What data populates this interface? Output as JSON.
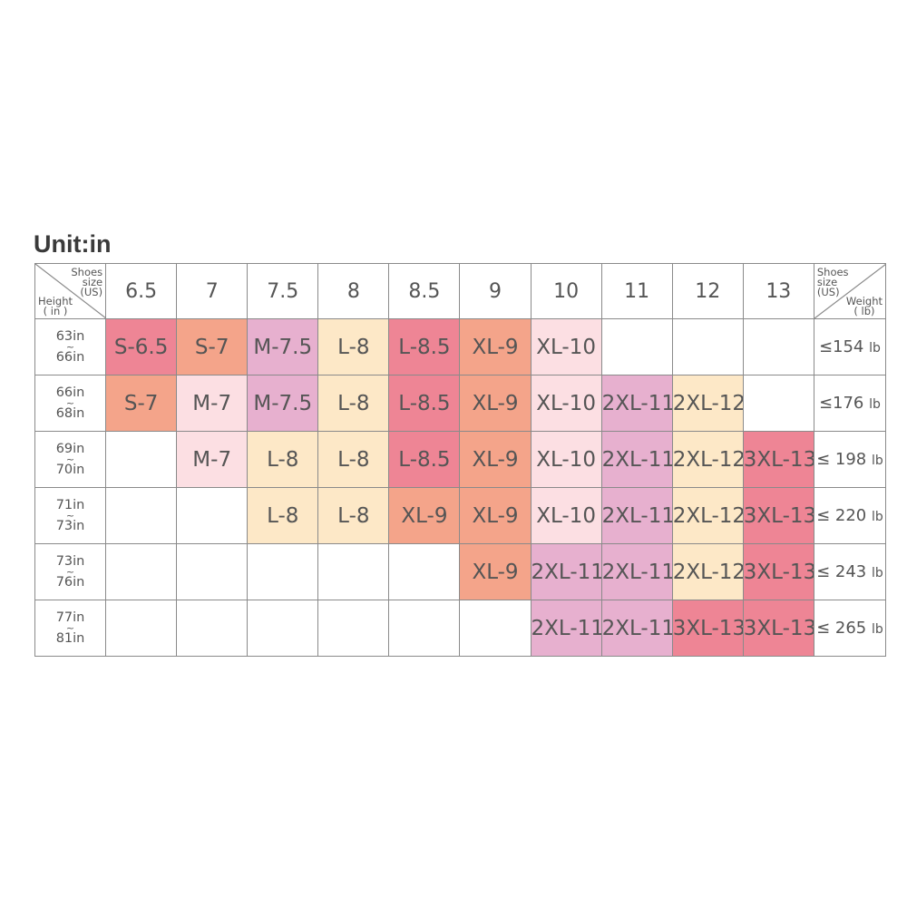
{
  "unit_label": "Unit:in",
  "corner_left": {
    "shoes_line1": "Shoes",
    "shoes_line2": "size",
    "shoes_line3": "(US)",
    "height_line1": "Height",
    "height_line2": "( in )"
  },
  "corner_right": {
    "shoes_line1": "Shoes",
    "shoes_line2": "size",
    "shoes_line3": "(US)",
    "weight_line1": "Weight",
    "weight_line2": "( lb)"
  },
  "shoe_sizes": [
    "6.5",
    "7",
    "7.5",
    "8",
    "8.5",
    "9",
    "10",
    "11",
    "12",
    "13"
  ],
  "rows": [
    {
      "height_from": "63in",
      "tilde": "~",
      "height_to": "66in",
      "weight": "≤154",
      "weight_unit": "lb",
      "cells": [
        {
          "text": "S-6.5",
          "color": "#ee8595"
        },
        {
          "text": "S-7",
          "color": "#f4a48a"
        },
        {
          "text": "M-7.5",
          "color": "#e7b0cf"
        },
        {
          "text": "L-8",
          "color": "#fde8c7"
        },
        {
          "text": "L-8.5",
          "color": "#ee8595"
        },
        {
          "text": "XL-9",
          "color": "#f4a48a"
        },
        {
          "text": "XL-10",
          "color": "#fcdfe3"
        },
        {
          "text": "",
          "color": ""
        },
        {
          "text": "",
          "color": ""
        },
        {
          "text": "",
          "color": ""
        }
      ]
    },
    {
      "height_from": "66in",
      "tilde": "~",
      "height_to": "68in",
      "weight": "≤176",
      "weight_unit": "lb",
      "cells": [
        {
          "text": "S-7",
          "color": "#f4a48a"
        },
        {
          "text": "M-7",
          "color": "#fcdfe3"
        },
        {
          "text": "M-7.5",
          "color": "#e7b0cf"
        },
        {
          "text": "L-8",
          "color": "#fde8c7"
        },
        {
          "text": "L-8.5",
          "color": "#ee8595"
        },
        {
          "text": "XL-9",
          "color": "#f4a48a"
        },
        {
          "text": "XL-10",
          "color": "#fcdfe3"
        },
        {
          "text": "2XL-11",
          "color": "#e7b0cf"
        },
        {
          "text": "2XL-12",
          "color": "#fde8c7"
        },
        {
          "text": "",
          "color": ""
        }
      ]
    },
    {
      "height_from": "69in",
      "tilde": "~",
      "height_to": "70in",
      "weight": "≤ 198",
      "weight_unit": "lb",
      "cells": [
        {
          "text": "",
          "color": ""
        },
        {
          "text": "M-7",
          "color": "#fcdfe3"
        },
        {
          "text": "L-8",
          "color": "#fde8c7"
        },
        {
          "text": "L-8",
          "color": "#fde8c7"
        },
        {
          "text": "L-8.5",
          "color": "#ee8595"
        },
        {
          "text": "XL-9",
          "color": "#f4a48a"
        },
        {
          "text": "XL-10",
          "color": "#fcdfe3"
        },
        {
          "text": "2XL-11",
          "color": "#e7b0cf"
        },
        {
          "text": "2XL-12",
          "color": "#fde8c7"
        },
        {
          "text": "3XL-13",
          "color": "#ee8595"
        }
      ]
    },
    {
      "height_from": "71in",
      "tilde": "~",
      "height_to": "73in",
      "weight": "≤ 220",
      "weight_unit": "lb",
      "cells": [
        {
          "text": "",
          "color": ""
        },
        {
          "text": "",
          "color": ""
        },
        {
          "text": "L-8",
          "color": "#fde8c7"
        },
        {
          "text": "L-8",
          "color": "#fde8c7"
        },
        {
          "text": "XL-9",
          "color": "#f4a48a"
        },
        {
          "text": "XL-9",
          "color": "#f4a48a"
        },
        {
          "text": "XL-10",
          "color": "#fcdfe3"
        },
        {
          "text": "2XL-11",
          "color": "#e7b0cf"
        },
        {
          "text": "2XL-12",
          "color": "#fde8c7"
        },
        {
          "text": "3XL-13",
          "color": "#ee8595"
        }
      ]
    },
    {
      "height_from": "73in",
      "tilde": "~",
      "height_to": "76in",
      "weight": "≤ 243",
      "weight_unit": "lb",
      "cells": [
        {
          "text": "",
          "color": ""
        },
        {
          "text": "",
          "color": ""
        },
        {
          "text": "",
          "color": ""
        },
        {
          "text": "",
          "color": ""
        },
        {
          "text": "",
          "color": ""
        },
        {
          "text": "XL-9",
          "color": "#f4a48a"
        },
        {
          "text": "2XL-11",
          "color": "#e7b0cf"
        },
        {
          "text": "2XL-11",
          "color": "#e7b0cf"
        },
        {
          "text": "2XL-12",
          "color": "#fde8c7"
        },
        {
          "text": "3XL-13",
          "color": "#ee8595"
        }
      ]
    },
    {
      "height_from": "77in",
      "tilde": "~",
      "height_to": "81in",
      "weight": "≤ 265",
      "weight_unit": "lb",
      "cells": [
        {
          "text": "",
          "color": ""
        },
        {
          "text": "",
          "color": ""
        },
        {
          "text": "",
          "color": ""
        },
        {
          "text": "",
          "color": ""
        },
        {
          "text": "",
          "color": ""
        },
        {
          "text": "",
          "color": ""
        },
        {
          "text": "2XL-11",
          "color": "#e7b0cf"
        },
        {
          "text": "2XL-11",
          "color": "#e7b0cf"
        },
        {
          "text": "3XL-13",
          "color": "#ee8595"
        },
        {
          "text": "3XL-13",
          "color": "#ee8595"
        }
      ]
    }
  ]
}
